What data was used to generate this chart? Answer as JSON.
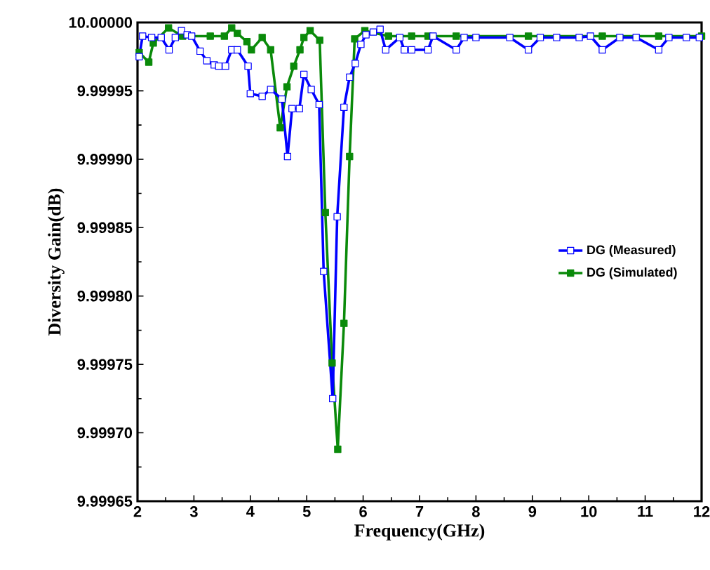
{
  "chart_data": {
    "type": "line",
    "xlabel": "Frequency(GHz)",
    "ylabel": "Diversity Gain(dB)",
    "xlim": [
      2,
      12
    ],
    "xticks": [
      2,
      3,
      4,
      5,
      6,
      7,
      8,
      9,
      10,
      11,
      12
    ],
    "ylim": [
      9.99965,
      10.0
    ],
    "yticks": [
      {
        "value": 9.99965,
        "label": "9.99965"
      },
      {
        "value": 9.9997,
        "label": "9.99970"
      },
      {
        "value": 9.99975,
        "label": "9.99975"
      },
      {
        "value": 9.9998,
        "label": "9.99980"
      },
      {
        "value": 9.99985,
        "label": "9.99985"
      },
      {
        "value": 9.9999,
        "label": "9.99990"
      },
      {
        "value": 9.99995,
        "label": "9.99995"
      },
      {
        "value": 10.0,
        "label": "10.00000"
      }
    ],
    "grid": false,
    "legend": "right",
    "marker": "square",
    "line_style": "solid",
    "series": [
      {
        "name": "DG (Measured)",
        "color": "#0000ff",
        "x": [
          2.03,
          2.09,
          2.25,
          2.42,
          2.56,
          2.67,
          2.78,
          2.88,
          2.96,
          3.11,
          3.23,
          3.36,
          3.44,
          3.56,
          3.67,
          3.77,
          3.96,
          4.0,
          4.21,
          4.36,
          4.56,
          4.66,
          4.74,
          4.87,
          4.95,
          5.08,
          5.22,
          5.3,
          5.46,
          5.54,
          5.66,
          5.76,
          5.86,
          5.96,
          6.05,
          6.18,
          6.3,
          6.4,
          6.65,
          6.73,
          6.86,
          7.15,
          7.24,
          7.65,
          7.79,
          8.0,
          8.6,
          8.93,
          9.14,
          9.43,
          9.83,
          10.03,
          10.24,
          10.55,
          10.84,
          11.24,
          11.42,
          11.73,
          11.96
        ],
        "values": [
          9.999975,
          9.99999,
          9.999989,
          9.999989,
          9.99998,
          9.999989,
          9.999994,
          9.999991,
          9.99999,
          9.999979,
          9.999972,
          9.999969,
          9.999968,
          9.999968,
          9.99998,
          9.99998,
          9.999968,
          9.999948,
          9.999946,
          9.999951,
          9.999944,
          9.999902,
          9.999937,
          9.999937,
          9.999962,
          9.999951,
          9.99994,
          9.999818,
          9.999725,
          9.999858,
          9.999938,
          9.99996,
          9.99997,
          9.999984,
          9.999991,
          9.999993,
          9.999995,
          9.99998,
          9.999989,
          9.99998,
          9.99998,
          9.99998,
          9.99999,
          9.99998,
          9.999989,
          9.999989,
          9.999989,
          9.99998,
          9.999989,
          9.999989,
          9.999989,
          9.99999,
          9.99998,
          9.999989,
          9.999989,
          9.99998,
          9.999989,
          9.999989,
          9.999989
        ]
      },
      {
        "name": "DG (Simulated)",
        "color": "#0a8a0a",
        "x": [
          2.03,
          2.2,
          2.28,
          2.55,
          2.8,
          3.29,
          3.54,
          3.67,
          3.77,
          3.94,
          4.02,
          4.21,
          4.36,
          4.53,
          4.65,
          4.77,
          4.88,
          4.95,
          5.06,
          5.23,
          5.33,
          5.45,
          5.55,
          5.66,
          5.76,
          5.85,
          6.03,
          6.45,
          6.86,
          7.15,
          7.65,
          8.93,
          10.24,
          11.24,
          12.0
        ],
        "values": [
          9.999978,
          9.999971,
          9.999985,
          9.999996,
          9.99999,
          9.99999,
          9.99999,
          9.999996,
          9.999992,
          9.999986,
          9.99998,
          9.999989,
          9.99998,
          9.999923,
          9.999953,
          9.999968,
          9.99998,
          9.999989,
          9.999994,
          9.999987,
          9.999861,
          9.999751,
          9.999688,
          9.99978,
          9.999902,
          9.999988,
          9.999994,
          9.99999,
          9.99999,
          9.99999,
          9.99999,
          9.99999,
          9.99999,
          9.99999,
          9.99999
        ]
      }
    ]
  }
}
